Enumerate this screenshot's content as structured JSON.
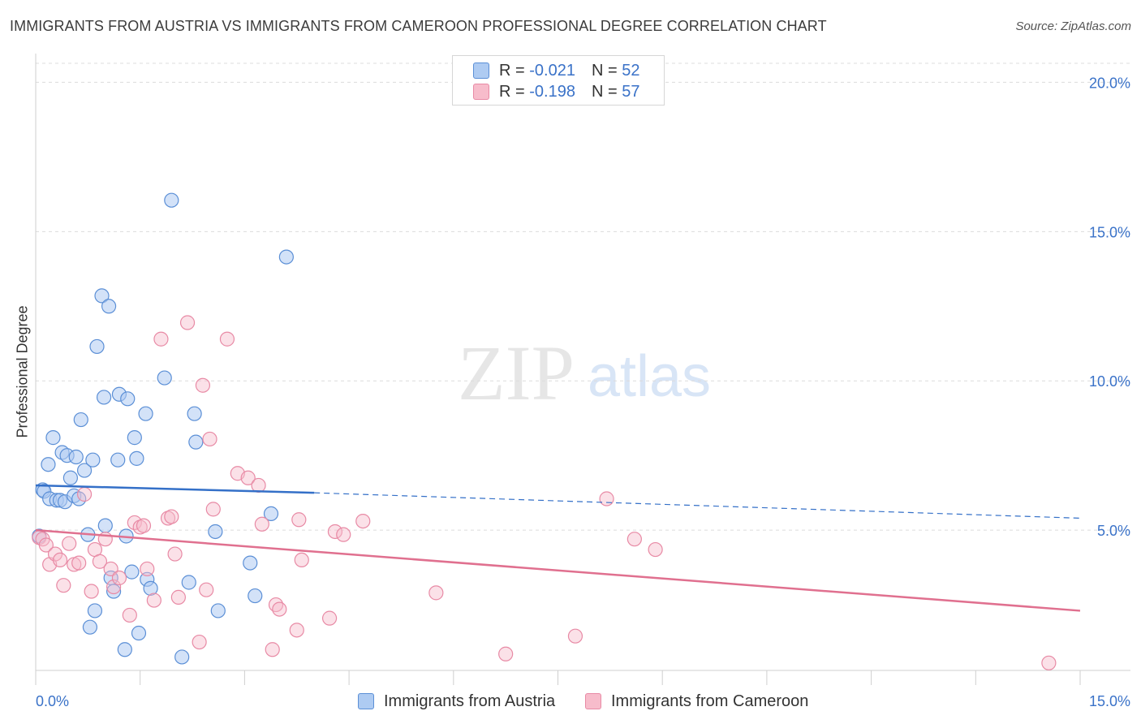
{
  "title": "IMMIGRANTS FROM AUSTRIA VS IMMIGRANTS FROM CAMEROON PROFESSIONAL DEGREE CORRELATION CHART",
  "source": "Source: ZipAtlas.com",
  "watermark": {
    "zip": "ZIP",
    "atlas": "atlas"
  },
  "legend": {
    "austria": {
      "r_label": "R =",
      "r_value": "-0.021",
      "n_label": "N =",
      "n_value": "52"
    },
    "cameroon": {
      "r_label": "R =",
      "r_value": "-0.198",
      "n_label": "N =",
      "n_value": "57"
    }
  },
  "colors": {
    "austria_fill": "#aecbf2",
    "austria_stroke": "#5b8fd6",
    "austria_line": "#3470c8",
    "cameroon_fill": "#f7bccb",
    "cameroon_stroke": "#e88aa5",
    "cameroon_line": "#e0708f",
    "grid": "#dcdcdc",
    "tick_label": "#3a72c8"
  },
  "chart_data": {
    "type": "scatter",
    "title": "IMMIGRANTS FROM AUSTRIA VS IMMIGRANTS FROM CAMEROON PROFESSIONAL DEGREE CORRELATION CHART",
    "xlabel": "",
    "ylabel": "Professional Degree",
    "xlim": [
      0,
      15
    ],
    "ylim": [
      0.3,
      20.8
    ],
    "x_tick_labels": [
      {
        "value": 0,
        "label": "0.0%"
      },
      {
        "value": 15,
        "label": "15.0%"
      }
    ],
    "y_tick_labels": [
      {
        "value": 5,
        "label": "5.0%"
      },
      {
        "value": 10,
        "label": "10.0%"
      },
      {
        "value": 15,
        "label": "15.0%"
      },
      {
        "value": 20,
        "label": "20.0%"
      }
    ],
    "x_minor_ticks": [
      0,
      1.5,
      3,
      4.5,
      6,
      7.5,
      9,
      10.5,
      12,
      13.5,
      15
    ],
    "grid": true,
    "legend_position": "top-center",
    "series": [
      {
        "name": "Immigrants from Austria",
        "r": -0.021,
        "n": 52,
        "trend": {
          "x0": 0,
          "y0": 6.5,
          "x_solid_end": 4.0,
          "y_solid_end": 6.25,
          "x1": 15,
          "y1": 5.4
        },
        "points": [
          [
            0.05,
            4.8
          ],
          [
            0.1,
            6.35
          ],
          [
            0.12,
            6.3
          ],
          [
            0.18,
            7.2
          ],
          [
            0.2,
            6.05
          ],
          [
            0.25,
            8.1
          ],
          [
            0.3,
            6.0
          ],
          [
            0.35,
            6.0
          ],
          [
            0.38,
            7.6
          ],
          [
            0.42,
            5.95
          ],
          [
            0.45,
            7.5
          ],
          [
            0.5,
            6.75
          ],
          [
            0.55,
            6.15
          ],
          [
            0.58,
            7.45
          ],
          [
            0.62,
            6.05
          ],
          [
            0.65,
            8.7
          ],
          [
            0.7,
            7.0
          ],
          [
            0.75,
            4.85
          ],
          [
            0.78,
            1.75
          ],
          [
            0.82,
            7.35
          ],
          [
            0.85,
            2.3
          ],
          [
            0.88,
            11.15
          ],
          [
            0.95,
            12.85
          ],
          [
            0.98,
            9.45
          ],
          [
            1.0,
            5.15
          ],
          [
            1.05,
            12.5
          ],
          [
            1.08,
            3.4
          ],
          [
            1.12,
            2.95
          ],
          [
            1.18,
            7.35
          ],
          [
            1.2,
            9.55
          ],
          [
            1.28,
            1.0
          ],
          [
            1.3,
            4.8
          ],
          [
            1.32,
            9.4
          ],
          [
            1.38,
            3.6
          ],
          [
            1.42,
            8.1
          ],
          [
            1.45,
            7.4
          ],
          [
            1.48,
            1.55
          ],
          [
            1.58,
            8.9
          ],
          [
            1.6,
            3.35
          ],
          [
            1.65,
            3.05
          ],
          [
            1.85,
            10.1
          ],
          [
            1.95,
            16.05
          ],
          [
            2.1,
            0.75
          ],
          [
            2.2,
            3.25
          ],
          [
            2.28,
            8.9
          ],
          [
            2.3,
            7.95
          ],
          [
            2.58,
            4.95
          ],
          [
            2.62,
            2.3
          ],
          [
            3.08,
            3.9
          ],
          [
            3.15,
            2.8
          ],
          [
            3.38,
            5.55
          ],
          [
            3.6,
            14.15
          ]
        ]
      },
      {
        "name": "Immigrants from Cameroon",
        "r": -0.198,
        "n": 57,
        "trend": {
          "x0": 0,
          "y0": 5.0,
          "x1": 15,
          "y1": 2.3
        },
        "points": [
          [
            0.05,
            4.75
          ],
          [
            0.1,
            4.7
          ],
          [
            0.15,
            4.5
          ],
          [
            0.2,
            3.85
          ],
          [
            0.28,
            4.2
          ],
          [
            0.35,
            4.0
          ],
          [
            0.4,
            3.15
          ],
          [
            0.48,
            4.55
          ],
          [
            0.55,
            3.85
          ],
          [
            0.62,
            3.9
          ],
          [
            0.7,
            6.2
          ],
          [
            0.8,
            2.95
          ],
          [
            0.85,
            4.35
          ],
          [
            0.92,
            3.95
          ],
          [
            1.0,
            4.7
          ],
          [
            1.08,
            3.7
          ],
          [
            1.12,
            3.1
          ],
          [
            1.2,
            3.4
          ],
          [
            1.35,
            2.15
          ],
          [
            1.42,
            5.25
          ],
          [
            1.5,
            5.1
          ],
          [
            1.55,
            5.15
          ],
          [
            1.6,
            3.7
          ],
          [
            1.7,
            2.65
          ],
          [
            1.8,
            11.4
          ],
          [
            1.9,
            5.4
          ],
          [
            1.95,
            5.45
          ],
          [
            2.0,
            4.2
          ],
          [
            2.05,
            2.75
          ],
          [
            2.18,
            11.95
          ],
          [
            2.35,
            1.25
          ],
          [
            2.4,
            9.85
          ],
          [
            2.45,
            3.0
          ],
          [
            2.5,
            8.05
          ],
          [
            2.55,
            5.7
          ],
          [
            2.75,
            11.4
          ],
          [
            2.9,
            6.9
          ],
          [
            3.05,
            6.75
          ],
          [
            3.2,
            6.5
          ],
          [
            3.25,
            5.2
          ],
          [
            3.4,
            1.0
          ],
          [
            3.45,
            2.5
          ],
          [
            3.5,
            2.35
          ],
          [
            3.75,
            1.65
          ],
          [
            3.78,
            5.35
          ],
          [
            3.82,
            4.0
          ],
          [
            4.22,
            2.05
          ],
          [
            4.3,
            4.95
          ],
          [
            4.42,
            4.85
          ],
          [
            4.7,
            5.3
          ],
          [
            5.75,
            2.9
          ],
          [
            6.75,
            0.85
          ],
          [
            7.75,
            1.45
          ],
          [
            8.2,
            6.05
          ],
          [
            8.6,
            4.7
          ],
          [
            8.9,
            4.35
          ],
          [
            14.55,
            0.55
          ]
        ]
      }
    ]
  },
  "bottom_legend": {
    "austria": "Immigrants from Austria",
    "cameroon": "Immigrants from Cameroon"
  }
}
